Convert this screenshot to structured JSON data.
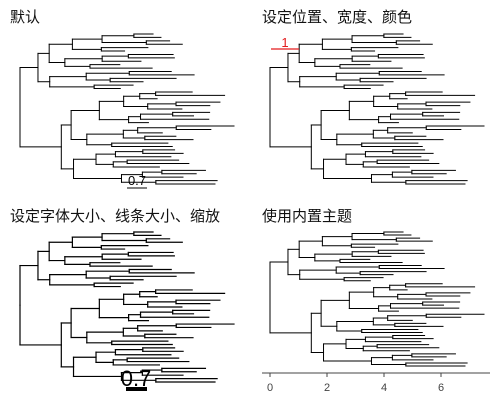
{
  "panels": {
    "default": {
      "title": "默认",
      "scale_label": "0.7",
      "scale_color": "#000000"
    },
    "position": {
      "title": "设定位置、宽度、颜色",
      "scale_label": "1",
      "scale_color": "#e31a1c"
    },
    "font": {
      "title": "设定字体大小、线条大小、缩放",
      "scale_label": "0.7",
      "scale_color": "#000000"
    },
    "theme": {
      "title": "使用内置主题",
      "axis_ticks": [
        "0",
        "2",
        "4",
        "6"
      ],
      "axis_color": "#444444"
    }
  },
  "tree": {
    "tip_count": 45,
    "branch_color": "#000000"
  }
}
